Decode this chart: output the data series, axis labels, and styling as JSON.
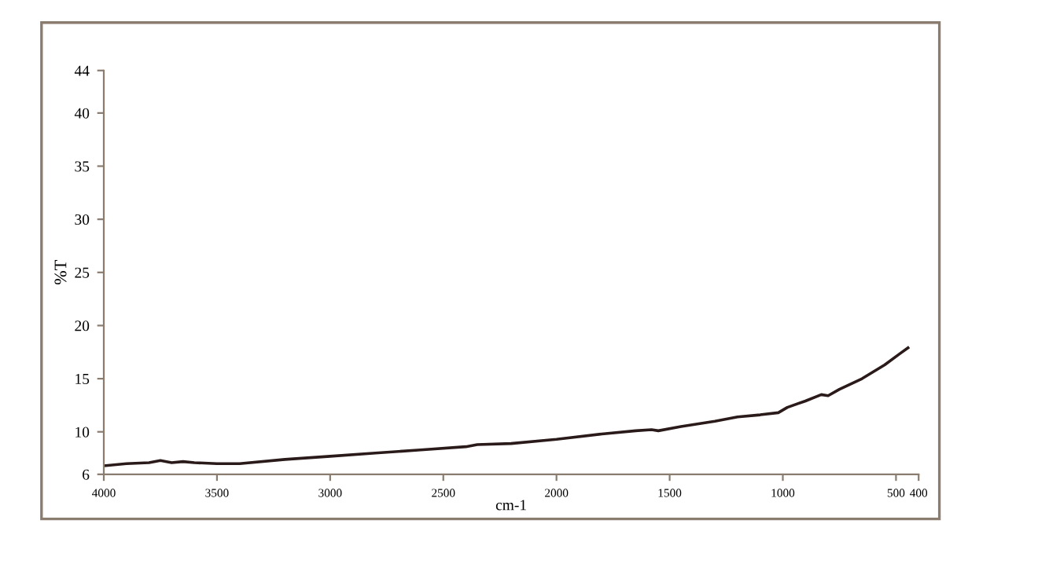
{
  "chart_data": {
    "type": "line",
    "xlabel": "cm-1",
    "ylabel": "%T",
    "x": [
      4000,
      3900,
      3800,
      3750,
      3700,
      3650,
      3600,
      3500,
      3400,
      3200,
      3000,
      2800,
      2600,
      2400,
      2350,
      2200,
      2000,
      1800,
      1650,
      1580,
      1550,
      1450,
      1300,
      1200,
      1100,
      1020,
      980,
      900,
      830,
      800,
      750,
      650,
      550,
      480,
      447
    ],
    "series": [
      {
        "color": "#2a1a1a",
        "values": [
          6.8,
          7.0,
          7.1,
          7.3,
          7.1,
          7.2,
          7.1,
          7.0,
          7.0,
          7.4,
          7.7,
          8.0,
          8.3,
          8.6,
          8.8,
          8.9,
          9.3,
          9.8,
          10.1,
          10.2,
          10.1,
          10.5,
          11.0,
          11.4,
          11.6,
          11.8,
          12.3,
          12.9,
          13.5,
          13.4,
          14.0,
          15.0,
          16.3,
          17.4,
          17.9
        ]
      }
    ],
    "xlim": [
      4000,
      400
    ],
    "xticks": [
      4000,
      3500,
      3000,
      2500,
      2000,
      1500,
      1000,
      500,
      400
    ],
    "ylim": [
      6,
      44
    ],
    "yticks": [
      6,
      10,
      15,
      20,
      25,
      30,
      35,
      40,
      44
    ],
    "grid": false,
    "legend": false,
    "marker": "none",
    "line_style": "solid"
  }
}
